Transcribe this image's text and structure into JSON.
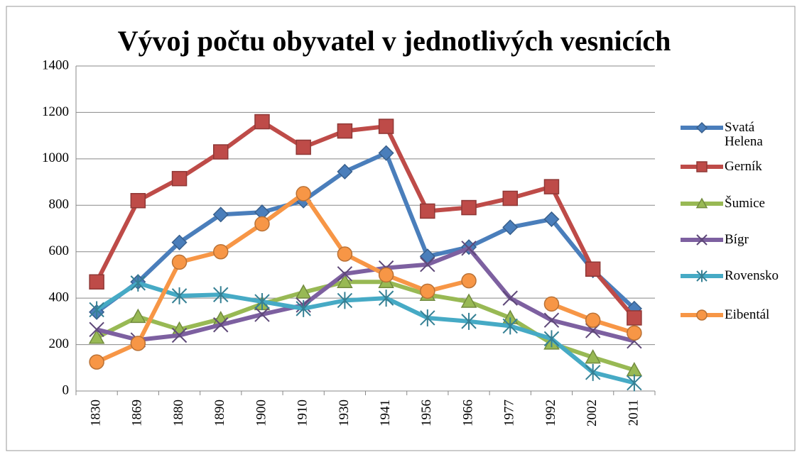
{
  "chart_data": {
    "type": "line",
    "title": "Vývoj počtu obyvatel v jednotlivých vesnicích",
    "categories": [
      "1830",
      "1869",
      "1880",
      "1890",
      "1900",
      "1910",
      "1930",
      "1941",
      "1956",
      "1966",
      "1977",
      "1992",
      "2002",
      "2011"
    ],
    "ylim": [
      0,
      1400
    ],
    "yticks": [
      0,
      200,
      400,
      600,
      800,
      1000,
      1200,
      1400
    ],
    "grid": true,
    "legend": "right",
    "series": [
      {
        "name": "Svatá Helena",
        "color": "#4a7ebb",
        "marker": "diamond",
        "values": [
          340,
          470,
          640,
          760,
          770,
          820,
          945,
          1025,
          580,
          620,
          705,
          740,
          520,
          355
        ]
      },
      {
        "name": "Gerník",
        "color": "#be4b48",
        "marker": "square",
        "values": [
          470,
          820,
          915,
          1030,
          1160,
          1050,
          1120,
          1140,
          775,
          790,
          830,
          880,
          525,
          315
        ]
      },
      {
        "name": "Šumice",
        "color": "#98b954",
        "marker": "triangle",
        "values": [
          230,
          320,
          265,
          310,
          375,
          425,
          470,
          470,
          415,
          385,
          315,
          205,
          145,
          90
        ]
      },
      {
        "name": "Bígr",
        "color": "#7d60a0",
        "marker": "x",
        "values": [
          265,
          220,
          240,
          285,
          330,
          370,
          505,
          530,
          545,
          615,
          400,
          305,
          260,
          215
        ]
      },
      {
        "name": "Rovensko",
        "color": "#46aac5",
        "marker": "star",
        "values": [
          350,
          465,
          410,
          415,
          385,
          355,
          390,
          400,
          315,
          300,
          280,
          225,
          80,
          35
        ]
      },
      {
        "name": "Eibentál",
        "color": "#f79646",
        "marker": "circle",
        "values": [
          125,
          205,
          555,
          600,
          720,
          850,
          590,
          500,
          430,
          475,
          null,
          375,
          305,
          250
        ]
      }
    ]
  }
}
